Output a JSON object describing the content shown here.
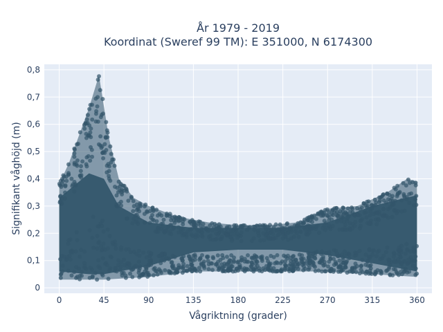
{
  "chart_data": {
    "type": "scatter",
    "title_line1": "År 1979 - 2019",
    "title_line2": "Koordinat (Sweref 99 TM): E 351000, N 6174300",
    "xlabel": "Vågriktning (grader)",
    "ylabel": "Signifikant våghöjd (m)",
    "xlim": [
      -15,
      375
    ],
    "ylim": [
      -0.02,
      0.82
    ],
    "x_ticks": [
      0,
      45,
      90,
      135,
      180,
      225,
      270,
      315,
      360
    ],
    "y_ticks": [
      0,
      0.1,
      0.2,
      0.3,
      0.4,
      0.5,
      0.6,
      0.7,
      0.8
    ],
    "y_tick_labels": [
      "0",
      "0,1",
      "0,2",
      "0,3",
      "0,4",
      "0,5",
      "0,6",
      "0,7",
      "0,8"
    ],
    "grid": true,
    "marker_color": "#33566b",
    "background_color": "#e5ecf6",
    "upper_envelope": [
      {
        "x": 0,
        "y": 0.38
      },
      {
        "x": 10,
        "y": 0.46
      },
      {
        "x": 20,
        "y": 0.56
      },
      {
        "x": 30,
        "y": 0.66
      },
      {
        "x": 40,
        "y": 0.78
      },
      {
        "x": 50,
        "y": 0.55
      },
      {
        "x": 60,
        "y": 0.4
      },
      {
        "x": 75,
        "y": 0.33
      },
      {
        "x": 90,
        "y": 0.3
      },
      {
        "x": 120,
        "y": 0.26
      },
      {
        "x": 150,
        "y": 0.24
      },
      {
        "x": 180,
        "y": 0.23
      },
      {
        "x": 210,
        "y": 0.23
      },
      {
        "x": 240,
        "y": 0.24
      },
      {
        "x": 270,
        "y": 0.29
      },
      {
        "x": 300,
        "y": 0.3
      },
      {
        "x": 330,
        "y": 0.35
      },
      {
        "x": 350,
        "y": 0.4
      },
      {
        "x": 360,
        "y": 0.39
      }
    ],
    "lower_envelope": [
      {
        "x": 0,
        "y": 0.03
      },
      {
        "x": 45,
        "y": 0.03
      },
      {
        "x": 90,
        "y": 0.04
      },
      {
        "x": 135,
        "y": 0.06
      },
      {
        "x": 180,
        "y": 0.06
      },
      {
        "x": 225,
        "y": 0.06
      },
      {
        "x": 270,
        "y": 0.06
      },
      {
        "x": 315,
        "y": 0.05
      },
      {
        "x": 360,
        "y": 0.04
      }
    ],
    "core_band": [
      {
        "x": 0,
        "lo": 0.06,
        "hi": 0.33
      },
      {
        "x": 30,
        "lo": 0.05,
        "hi": 0.42
      },
      {
        "x": 45,
        "lo": 0.05,
        "hi": 0.4
      },
      {
        "x": 60,
        "lo": 0.06,
        "hi": 0.3
      },
      {
        "x": 90,
        "lo": 0.08,
        "hi": 0.24
      },
      {
        "x": 135,
        "lo": 0.13,
        "hi": 0.22
      },
      {
        "x": 180,
        "lo": 0.14,
        "hi": 0.22
      },
      {
        "x": 225,
        "lo": 0.14,
        "hi": 0.22
      },
      {
        "x": 270,
        "lo": 0.12,
        "hi": 0.24
      },
      {
        "x": 315,
        "lo": 0.09,
        "hi": 0.3
      },
      {
        "x": 360,
        "lo": 0.06,
        "hi": 0.34
      }
    ]
  }
}
